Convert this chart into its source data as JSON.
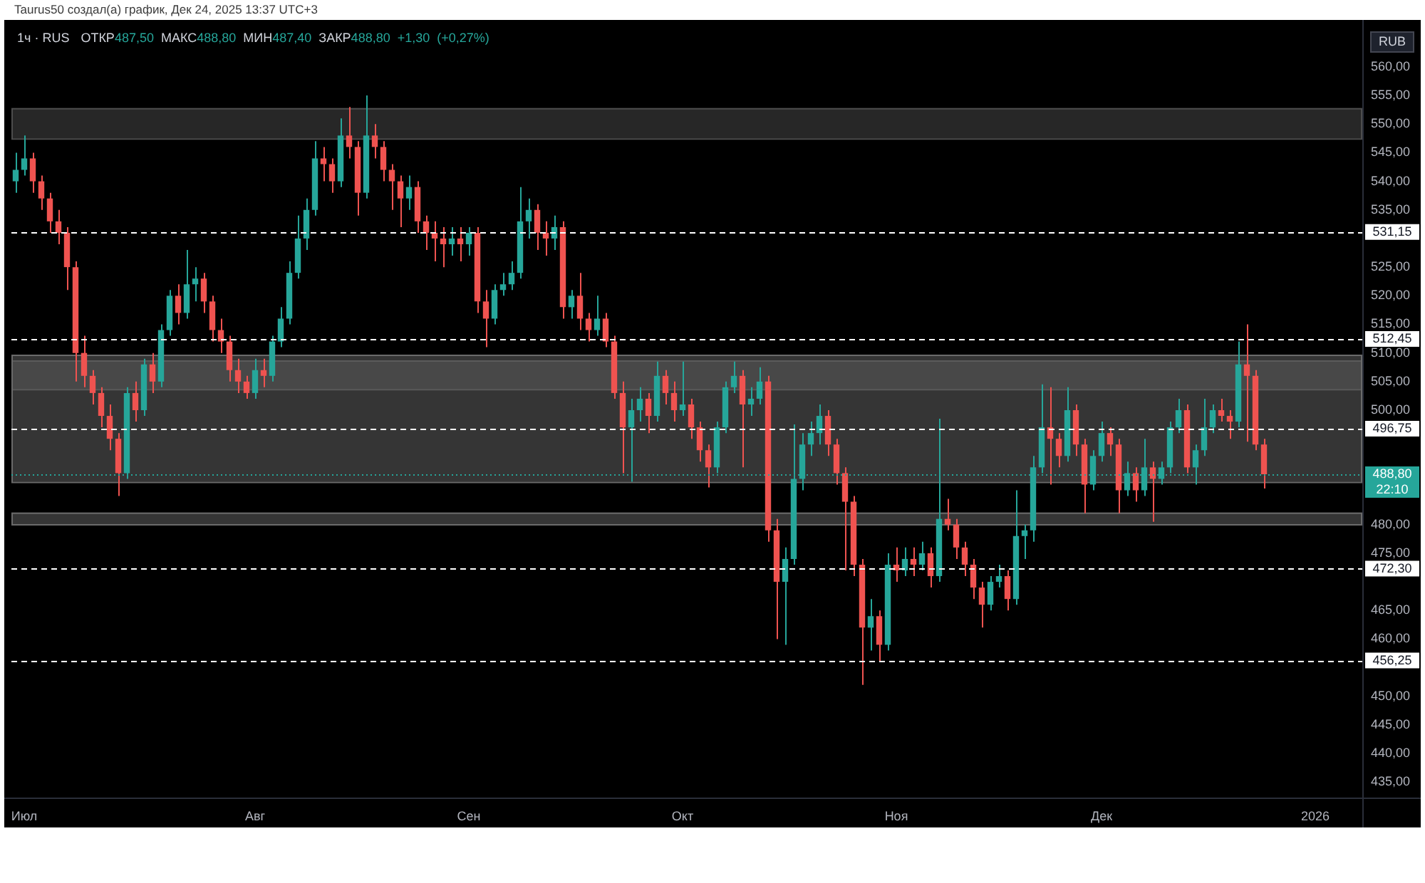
{
  "chart_data": {
    "type": "candlestick",
    "title": "1ч · RUS",
    "subtitle": "ОТКР487,50 МАКС488,80 МИН487,40 ЗАКР488,80 +1,30 (+0,27%)",
    "ylabel": "RUB",
    "annotations": [
      "Taurus50 создал(а) график, Дек 24, 2025 13:37 UTC+3",
      "22:10"
    ],
    "categories": [
      null,
      "Июл",
      null,
      null,
      null,
      null,
      null,
      null,
      null,
      null,
      null,
      null,
      null,
      null,
      null,
      null,
      null,
      null,
      null,
      null,
      null,
      null,
      null,
      null,
      null,
      null,
      null,
      null,
      "Авг",
      null,
      null,
      null,
      null,
      null,
      null,
      null,
      null,
      null,
      null,
      null,
      null,
      null,
      null,
      null,
      null,
      null,
      null,
      null,
      null,
      null,
      null,
      null,
      null,
      "Сен",
      null,
      null,
      null,
      null,
      null,
      null,
      null,
      null,
      null,
      null,
      null,
      null,
      null,
      null,
      null,
      null,
      null,
      null,
      null,
      null,
      null,
      null,
      null,
      null,
      "Окт",
      null,
      null,
      null,
      null,
      null,
      null,
      null,
      null,
      null,
      null,
      null,
      null,
      null,
      null,
      null,
      null,
      null,
      null,
      null,
      null,
      null,
      null,
      null,
      null,
      "Ноя",
      null,
      null,
      null,
      null,
      null,
      null,
      null,
      null,
      null,
      null,
      null,
      null,
      null,
      null,
      null,
      null,
      null,
      null,
      null,
      null,
      null,
      null,
      null,
      "Дек",
      null,
      null,
      null,
      null,
      null,
      null,
      null,
      null,
      null,
      null,
      null,
      null,
      null,
      null,
      null,
      null,
      null,
      null,
      null,
      null,
      null,
      null,
      null,
      null,
      "2026",
      null,
      null,
      null,
      null,
      null
    ],
    "ohlc": [
      [
        540,
        545,
        538,
        542
      ],
      [
        542,
        548,
        541,
        544
      ],
      [
        544,
        545,
        538,
        540
      ],
      [
        540,
        541,
        535,
        537
      ],
      [
        537,
        538,
        531,
        533
      ],
      [
        533,
        535,
        529,
        531
      ],
      [
        531,
        532,
        521,
        525
      ],
      [
        525,
        526,
        505,
        510
      ],
      [
        510,
        513,
        504,
        506
      ],
      [
        506,
        507,
        501,
        503
      ],
      [
        503,
        504,
        497,
        499
      ],
      [
        499,
        501,
        493,
        495
      ],
      [
        495,
        496,
        485,
        489
      ],
      [
        489,
        504,
        488,
        503
      ],
      [
        503,
        505,
        498,
        500
      ],
      [
        500,
        509,
        499,
        508
      ],
      [
        508,
        510,
        503,
        505
      ],
      [
        505,
        515,
        504,
        514
      ],
      [
        514,
        521,
        513,
        520
      ],
      [
        520,
        522,
        515,
        517
      ],
      [
        517,
        528,
        516,
        522
      ],
      [
        522,
        525,
        519,
        523
      ],
      [
        523,
        524,
        517,
        519
      ],
      [
        519,
        520,
        512,
        514
      ],
      [
        514,
        516,
        510,
        512
      ],
      [
        512,
        513,
        505,
        507
      ],
      [
        507,
        509,
        503,
        505
      ],
      [
        505,
        506,
        502,
        503
      ],
      [
        503,
        509,
        502,
        507
      ],
      [
        507,
        509,
        504,
        506
      ],
      [
        506,
        513,
        505,
        512
      ],
      [
        512,
        518,
        511,
        516
      ],
      [
        516,
        526,
        515,
        524
      ],
      [
        524,
        534,
        523,
        530
      ],
      [
        530,
        537,
        528,
        535
      ],
      [
        535,
        547,
        534,
        544
      ],
      [
        544,
        546,
        540,
        543
      ],
      [
        543,
        544,
        538,
        540
      ],
      [
        540,
        551,
        539,
        548
      ],
      [
        548,
        553,
        544,
        546
      ],
      [
        546,
        547,
        534,
        538
      ],
      [
        538,
        555,
        537,
        548
      ],
      [
        548,
        550,
        544,
        546
      ],
      [
        546,
        547,
        540,
        542
      ],
      [
        542,
        543,
        535,
        540
      ],
      [
        540,
        541,
        532,
        537
      ],
      [
        537,
        541,
        535,
        539
      ],
      [
        539,
        540,
        531,
        533
      ],
      [
        533,
        534,
        528,
        531
      ],
      [
        531,
        533,
        526,
        530
      ],
      [
        530,
        532,
        525,
        529
      ],
      [
        529,
        532,
        527,
        530
      ],
      [
        530,
        532,
        526,
        529
      ],
      [
        529,
        532,
        527,
        531
      ],
      [
        531,
        532,
        517,
        519
      ],
      [
        519,
        521,
        511,
        516
      ],
      [
        516,
        522,
        515,
        521
      ],
      [
        521,
        524,
        520,
        522
      ],
      [
        522,
        526,
        521,
        524
      ],
      [
        524,
        539,
        523,
        533
      ],
      [
        533,
        537,
        530,
        535
      ],
      [
        535,
        536,
        528,
        531
      ],
      [
        531,
        533,
        527,
        530
      ],
      [
        530,
        534,
        528,
        532
      ],
      [
        532,
        533,
        516,
        518
      ],
      [
        518,
        521,
        516,
        520
      ],
      [
        520,
        524,
        514,
        516
      ],
      [
        516,
        517,
        512,
        514
      ],
      [
        514,
        520,
        513,
        516
      ],
      [
        516,
        517,
        511,
        512
      ],
      [
        512,
        513,
        502,
        503
      ],
      [
        503,
        505,
        489,
        497
      ],
      [
        497,
        502,
        487.5,
        500
      ],
      [
        500,
        504,
        498,
        502
      ],
      [
        502,
        503,
        496,
        499
      ],
      [
        499,
        508.5,
        498,
        506
      ],
      [
        506,
        507,
        501,
        503
      ],
      [
        503,
        505,
        498,
        500
      ],
      [
        500,
        508.5,
        499,
        501
      ],
      [
        501,
        502,
        495,
        497
      ],
      [
        497,
        498,
        491,
        493
      ],
      [
        493,
        494,
        486.5,
        490
      ],
      [
        490,
        498,
        489,
        497
      ],
      [
        497,
        505,
        496,
        504
      ],
      [
        504,
        508.5,
        503,
        506
      ],
      [
        506,
        507,
        490,
        501
      ],
      [
        501,
        504,
        499,
        502
      ],
      [
        502,
        507.5,
        501,
        505
      ],
      [
        505,
        506,
        477,
        479
      ],
      [
        479,
        481,
        460,
        470
      ],
      [
        470,
        476,
        459,
        474
      ],
      [
        474,
        497.5,
        473,
        488
      ],
      [
        488,
        496,
        486,
        494
      ],
      [
        494,
        498,
        492,
        496
      ],
      [
        496,
        501,
        494,
        499
      ],
      [
        499,
        500,
        492,
        494
      ],
      [
        494,
        495,
        487,
        489
      ],
      [
        489,
        490,
        472,
        484
      ],
      [
        484,
        485,
        471,
        473
      ],
      [
        473,
        474,
        452,
        462
      ],
      [
        462,
        467,
        458,
        464
      ],
      [
        464,
        465,
        456,
        459
      ],
      [
        459,
        475,
        458,
        473
      ],
      [
        473,
        476,
        470,
        472
      ],
      [
        472,
        476,
        471,
        474
      ],
      [
        474,
        476,
        471,
        473
      ],
      [
        473,
        477,
        472,
        475
      ],
      [
        475,
        476,
        469,
        471
      ],
      [
        471,
        498.5,
        470,
        481
      ],
      [
        481,
        484.5,
        479,
        480
      ],
      [
        480,
        481,
        474,
        476
      ],
      [
        476,
        477,
        471,
        473
      ],
      [
        473,
        474,
        467,
        469
      ],
      [
        469,
        470,
        462,
        466
      ],
      [
        466,
        471,
        465,
        470
      ],
      [
        470,
        473,
        469,
        471
      ],
      [
        471,
        472,
        465,
        467
      ],
      [
        467,
        486,
        466,
        478
      ],
      [
        478,
        480,
        474,
        479
      ],
      [
        479,
        492,
        477,
        490
      ],
      [
        490,
        504.5,
        489,
        497
      ],
      [
        497,
        504,
        487,
        495
      ],
      [
        495,
        496,
        490,
        492
      ],
      [
        492,
        504,
        491,
        500
      ],
      [
        500,
        501,
        492,
        494
      ],
      [
        494,
        495,
        482,
        487
      ],
      [
        487,
        493,
        486,
        492
      ],
      [
        492,
        498,
        491,
        496
      ],
      [
        496,
        497,
        492,
        494
      ],
      [
        494,
        495,
        482,
        486
      ],
      [
        486,
        491,
        485,
        489
      ],
      [
        489,
        490,
        484,
        486
      ],
      [
        486,
        495,
        485,
        490
      ],
      [
        490,
        491,
        480.5,
        488
      ],
      [
        488,
        491,
        487,
        490
      ],
      [
        490,
        498,
        489,
        497
      ],
      [
        497,
        502,
        496,
        500
      ],
      [
        500,
        501,
        489,
        490
      ],
      [
        490,
        494,
        487,
        493
      ],
      [
        493,
        502,
        492,
        497
      ],
      [
        497,
        501,
        496,
        500
      ],
      [
        500,
        502,
        498,
        499
      ],
      [
        499,
        500,
        495,
        498
      ],
      [
        498,
        512,
        497,
        508
      ],
      [
        508,
        515,
        494.5,
        506
      ],
      [
        506,
        507,
        493,
        494
      ],
      [
        494,
        495,
        486.3,
        488.8
      ],
      null,
      null,
      null,
      null,
      null,
      null,
      null,
      null,
      null,
      null,
      null
    ],
    "colors": [
      "#26a69a",
      "#26a69a",
      "#ef5350",
      "#ef5350",
      "#ef5350",
      "#ef5350",
      "#ef5350",
      "#ef5350",
      "#ef5350",
      "#ef5350",
      "#ef5350",
      "#ef5350",
      "#ef5350",
      "#26a69a",
      "#ef5350",
      "#26a69a",
      "#ef5350",
      "#26a69a",
      "#26a69a",
      "#ef5350",
      "#26a69a",
      "#26a69a",
      "#ef5350",
      "#ef5350",
      "#ef5350",
      "#ef5350",
      "#ef5350",
      "#ef5350",
      "#26a69a",
      "#ef5350",
      "#26a69a",
      "#26a69a",
      "#26a69a",
      "#26a69a",
      "#26a69a",
      "#26a69a",
      "#ef5350",
      "#ef5350",
      "#26a69a",
      "#ef5350",
      "#ef5350",
      "#26a69a",
      "#ef5350",
      "#ef5350",
      "#ef5350",
      "#ef5350",
      "#26a69a",
      "#ef5350",
      "#ef5350",
      "#ef5350",
      "#ef5350",
      "#26a69a",
      "#ef5350",
      "#26a69a",
      "#ef5350",
      "#ef5350",
      "#26a69a",
      "#26a69a",
      "#26a69a",
      "#26a69a",
      "#26a69a",
      "#ef5350",
      "#ef5350",
      "#26a69a",
      "#ef5350",
      "#26a69a",
      "#ef5350",
      "#ef5350",
      "#26a69a",
      "#ef5350",
      "#ef5350",
      "#ef5350",
      "#26a69a",
      "#26a69a",
      "#ef5350",
      "#26a69a",
      "#ef5350",
      "#ef5350",
      "#26a69a",
      "#ef5350",
      "#ef5350",
      "#ef5350",
      "#26a69a",
      "#26a69a",
      "#26a69a",
      "#ef5350",
      "#26a69a",
      "#26a69a",
      "#ef5350",
      "#ef5350",
      "#26a69a",
      "#26a69a",
      "#26a69a",
      "#26a69a",
      "#26a69a",
      "#ef5350",
      "#ef5350",
      "#ef5350",
      "#ef5350",
      "#ef5350",
      "#26a69a",
      "#ef5350",
      "#26a69a",
      "#ef5350",
      "#26a69a",
      "#ef5350",
      "#26a69a",
      "#ef5350",
      "#26a69a",
      "#ef5350",
      "#ef5350",
      "#ef5350",
      "#ef5350",
      "#ef5350",
      "#26a69a",
      "#26a69a",
      "#ef5350",
      "#26a69a",
      "#26a69a",
      "#26a69a",
      "#26a69a",
      "#ef5350",
      "#ef5350",
      "#26a69a",
      "#ef5350",
      "#ef5350",
      "#26a69a",
      "#26a69a",
      "#ef5350",
      "#ef5350",
      "#26a69a",
      "#ef5350",
      "#26a69a",
      "#ef5350",
      "#26a69a",
      "#26a69a",
      "#26a69a",
      "#ef5350",
      "#26a69a",
      "#26a69a",
      "#26a69a",
      "#ef5350",
      "#ef5350",
      "#26a69a",
      "#ef5350",
      "#ef5350",
      "#ef5350",
      null,
      null,
      null,
      null,
      null,
      null,
      null,
      null,
      null,
      null,
      null
    ],
    "ylim": [
      432.3,
      568.2
    ],
    "yticks": [
      {
        "value": 435,
        "label": "435,00"
      },
      {
        "value": 440,
        "label": "440,00"
      },
      {
        "value": 445,
        "label": "445,00"
      },
      {
        "value": 450,
        "label": "450,00"
      },
      {
        "value": 460,
        "label": "460,00"
      },
      {
        "value": 465,
        "label": "465,00"
      },
      {
        "value": 475,
        "label": "475,00"
      },
      {
        "value": 480,
        "label": "480,00"
      },
      {
        "value": 500,
        "label": "500,00"
      },
      {
        "value": 505,
        "label": "505,00"
      },
      {
        "value": 510,
        "label": "510,00"
      },
      {
        "value": 515,
        "label": "515,00"
      },
      {
        "value": 520,
        "label": "520,00"
      },
      {
        "value": 525,
        "label": "525,00"
      },
      {
        "value": 535,
        "label": "535,00"
      },
      {
        "value": 540,
        "label": "540,00"
      },
      {
        "value": 545,
        "label": "545,00"
      },
      {
        "value": 550,
        "label": "550,00"
      },
      {
        "value": 555,
        "label": "555,00"
      },
      {
        "value": 560,
        "label": "560,00"
      }
    ],
    "ref_lines": [
      {
        "axis": "y",
        "value": 531.15,
        "label": "531,15",
        "color": "#ffffff",
        "line_style": "dashed"
      },
      {
        "axis": "y",
        "value": 512.45,
        "label": "512,45",
        "color": "#ffffff",
        "line_style": "dashed"
      },
      {
        "axis": "y",
        "value": 496.75,
        "label": "496,75",
        "color": "#ffffff",
        "line_style": "dashed"
      },
      {
        "axis": "y",
        "value": 488.8,
        "label": "488,80",
        "color": "#26a69a",
        "line_style": "dotted"
      },
      {
        "axis": "y",
        "value": 472.3,
        "label": "472,30",
        "color": "#ffffff",
        "line_style": "dashed"
      },
      {
        "axis": "y",
        "value": 456.25,
        "label": "456,25",
        "color": "#ffffff",
        "line_style": "dashed"
      }
    ],
    "bands": [
      {
        "axis": "y",
        "from": 547.5,
        "to": 552.8,
        "color": "#4d4d4d"
      },
      {
        "axis": "y",
        "from": 503.7,
        "to": 508.7,
        "color": "#4d4d4d"
      },
      {
        "axis": "y",
        "from": 487.5,
        "to": 509.7,
        "color": "#6a6a6a"
      },
      {
        "axis": "y",
        "from": 480.1,
        "to": 482.1,
        "color": "#6a6a6a"
      }
    ]
  }
}
